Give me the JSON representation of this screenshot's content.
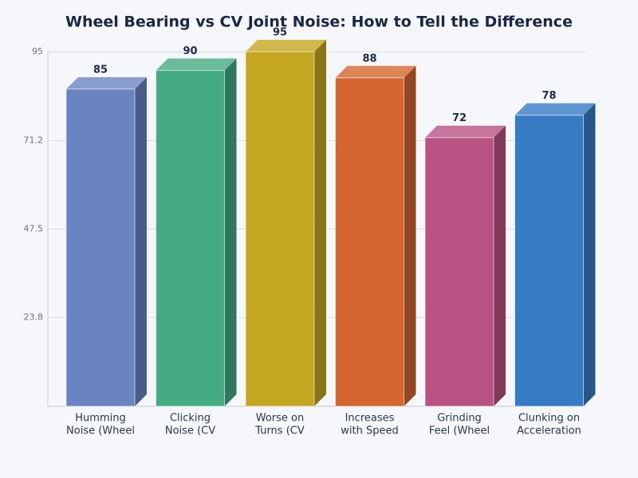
{
  "chart_data": {
    "type": "bar3d",
    "title": "Wheel Bearing vs CV Joint Noise: How to Tell the Difference",
    "categories": [
      [
        "Humming",
        "Noise (Wheel"
      ],
      [
        "Clicking",
        "Noise (CV"
      ],
      [
        "Worse on",
        "Turns (CV"
      ],
      [
        "Increases",
        "with Speed"
      ],
      [
        "Grinding",
        "Feel (Wheel"
      ],
      [
        "Clunking on",
        "Acceleration"
      ]
    ],
    "values": [
      85,
      90,
      95,
      88,
      72,
      78
    ],
    "colors": [
      "#6a84c2",
      "#45ab82",
      "#c4a620",
      "#d4652e",
      "#b85283",
      "#377bc4"
    ],
    "ylim": [
      0,
      95
    ],
    "yticks": [
      23.8,
      47.5,
      71.2,
      95
    ],
    "grid": true
  }
}
